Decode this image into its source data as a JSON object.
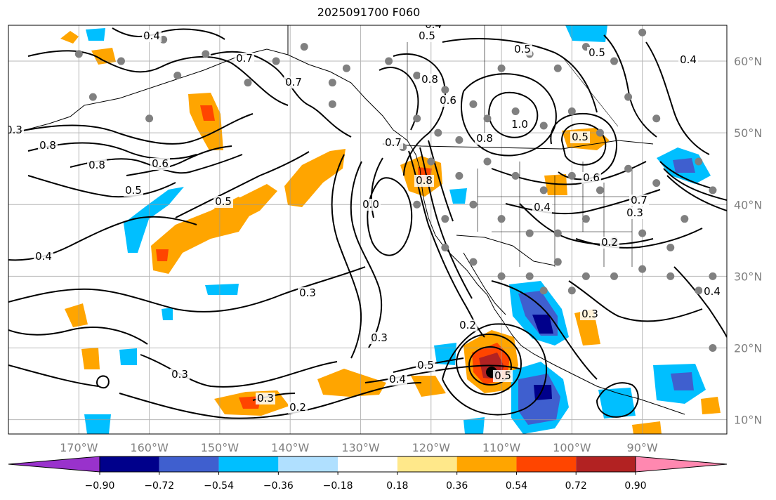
{
  "title": "2025091700 F060",
  "chart_data": {
    "type": "heatmap",
    "title": "2025091700 F060",
    "lon_range": [
      -180,
      -78
    ],
    "lat_range": [
      8,
      65
    ],
    "lon_ticks": [
      "170°W",
      "160°W",
      "150°W",
      "140°W",
      "130°W",
      "120°W",
      "110°W",
      "100°W",
      "90°W"
    ],
    "lat_ticks": [
      "60°N",
      "50°N",
      "40°N",
      "30°N",
      "20°N",
      "10°N"
    ],
    "colorbar": {
      "ticks": [
        "−0.90",
        "−0.72",
        "−0.54",
        "−0.36",
        "−0.18",
        "0.18",
        "0.36",
        "0.54",
        "0.72",
        "0.90"
      ],
      "colors": [
        "#9932cc",
        "#00008b",
        "#3f5fcf",
        "#00bfff",
        "#b0e0ff",
        "#ffffff",
        "#ffe88a",
        "#ffa500",
        "#ff4500",
        "#b22222",
        "#ff88b0"
      ]
    },
    "contour_labels": [
      "0.4",
      "0.5",
      "0.4",
      "0.5",
      "0.7",
      "0.7",
      "0.8",
      "0.6",
      "0.5",
      "0.8",
      "0.6",
      "0.5",
      "0.5",
      "0.7",
      "0.4",
      "0.8",
      "0.5",
      "0.0",
      "1.0",
      "0.8",
      "0.8",
      "0.4",
      "0.6",
      "0.7",
      "0.4",
      "0.3",
      "0.2",
      "0.3",
      "0.3",
      "0.3",
      "0.3",
      "0.2",
      "0.5",
      "0.5",
      "0.4",
      "0.3",
      "0.2",
      "0.3",
      "0.4"
    ],
    "colors": {
      "orange": "#ffa500",
      "red": "#ff4500",
      "darkred": "#b22222",
      "cyan": "#00bfff",
      "blue": "#3f5fcf",
      "navy": "#00008b",
      "station": "#808080"
    }
  }
}
